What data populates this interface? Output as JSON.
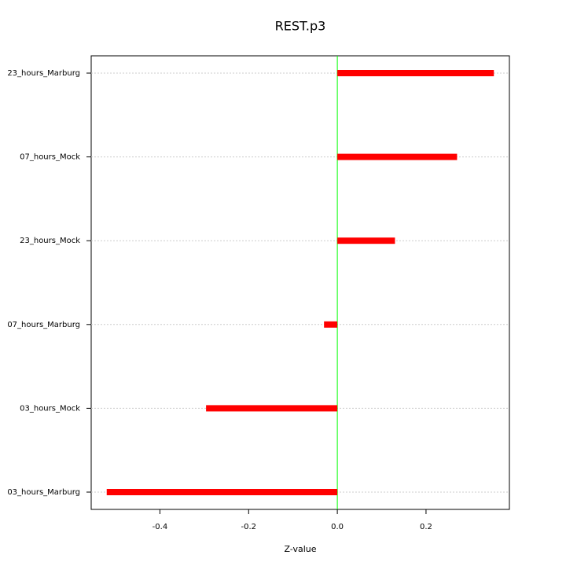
{
  "chart_data": {
    "type": "hbar",
    "title": "REST.p3",
    "x_label": "Z-value",
    "categories": [
      "23_hours_Marburg",
      "07_hours_Mock",
      "23_hours_Mock",
      "07_hours_Marburg",
      "03_hours_Mock",
      "03_hours_Marburg"
    ],
    "values": [
      0.353,
      0.27,
      0.13,
      -0.03,
      -0.296,
      -0.52
    ],
    "color": "#ff0000",
    "xlim": [
      -0.555,
      0.388
    ],
    "xticks": [
      -0.4,
      -0.2,
      {
        "value": 0,
        "label": "0.0"
      },
      0.2
    ],
    "grid": true,
    "reference_line": {
      "value": 0,
      "color": "#00ff00"
    }
  }
}
